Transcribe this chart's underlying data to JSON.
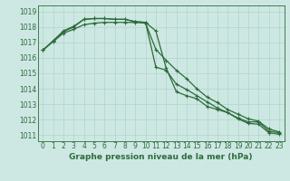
{
  "title": "Graphe pression niveau de la mer (hPa)",
  "bg_color": "#cde8e2",
  "grid_color": "#b0d4ca",
  "line_color": "#2d6b3c",
  "x_values": [
    0,
    1,
    2,
    3,
    4,
    5,
    6,
    7,
    8,
    9,
    10,
    11,
    12,
    13,
    14,
    15,
    16,
    17,
    18,
    19,
    20,
    21,
    22,
    23
  ],
  "line1": [
    1016.5,
    1017.1,
    1017.75,
    1018.05,
    1018.5,
    1018.55,
    1018.55,
    1018.5,
    1018.5,
    1018.35,
    1018.3,
    1017.75,
    1015.35,
    1013.8,
    1013.55,
    1013.35,
    1012.85,
    1012.65,
    1012.45,
    1012.1,
    1011.85,
    1011.85,
    1011.25,
    1011.15
  ],
  "line2": [
    1016.5,
    1017.05,
    1017.6,
    1017.85,
    1018.15,
    1018.25,
    1018.3,
    1018.3,
    1018.3,
    1018.3,
    1018.25,
    1016.55,
    1015.85,
    1015.2,
    1014.65,
    1014.0,
    1013.45,
    1013.1,
    1012.65,
    1012.35,
    1012.05,
    1011.9,
    1011.4,
    1011.2
  ],
  "line3": [
    1016.5,
    1017.1,
    1017.7,
    1018.0,
    1018.5,
    1018.55,
    1018.55,
    1018.5,
    1018.5,
    1018.35,
    1018.3,
    1015.4,
    1015.2,
    1014.3,
    1013.95,
    1013.55,
    1013.15,
    1012.75,
    1012.45,
    1012.05,
    1011.75,
    1011.7,
    1011.15,
    1011.05
  ],
  "ylim": [
    1010.6,
    1019.4
  ],
  "yticks": [
    1011,
    1012,
    1013,
    1014,
    1015,
    1016,
    1017,
    1018,
    1019
  ],
  "xticks": [
    0,
    1,
    2,
    3,
    4,
    5,
    6,
    7,
    8,
    9,
    10,
    11,
    12,
    13,
    14,
    15,
    16,
    17,
    18,
    19,
    20,
    21,
    22,
    23
  ],
  "markersize": 3.5,
  "linewidth": 0.9,
  "tick_fontsize": 5.5,
  "label_fontsize": 6.5
}
